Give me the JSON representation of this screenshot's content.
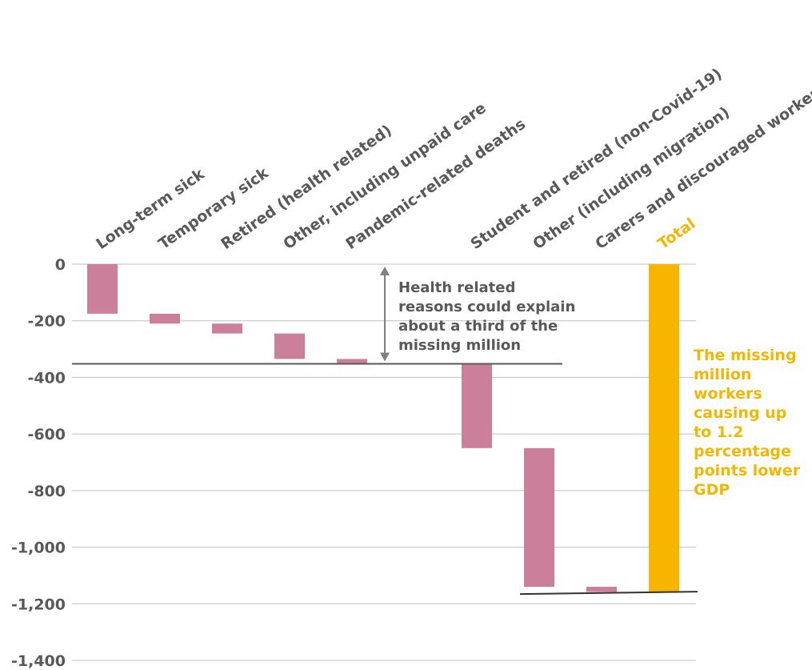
{
  "chart_data": {
    "type": "bar",
    "subtype": "waterfall",
    "categories": [
      "Long-term sick",
      "Temporary sick",
      "Retired (health related)",
      "Other, including unpaid care",
      "Pandemic-related deaths",
      "",
      "Student and retired (non-Covid-19)",
      "Other (including migration)",
      "Carers and discouraged workers",
      "Total"
    ],
    "values": [
      -175,
      -35,
      -35,
      -90,
      -15,
      0,
      -300,
      -490,
      -18,
      -1160
    ],
    "ylim": [
      -1400,
      0
    ],
    "yticks": [
      0,
      -200,
      -400,
      -600,
      -800,
      -1000,
      -1200,
      -1400
    ],
    "ytick_labels": [
      "0",
      "-200",
      "-400",
      "-600",
      "-800",
      "-1,000",
      "-1,200",
      "-1,400"
    ],
    "grid": true,
    "reference_lines": [
      -352,
      -1160
    ],
    "annotations": [
      {
        "text": "Health related reasons could explain about a third of the missing million",
        "lines": [
          "Health related",
          "reasons could explain",
          "about a third of the",
          "missing million"
        ]
      },
      {
        "text": "The missing million workers causing up to 1.2 percentage points lower GDP",
        "lines": [
          "The missing",
          "million",
          "workers",
          "causing up",
          "to 1.2",
          "percentage",
          "points lower",
          "GDP"
        ]
      }
    ],
    "colors": {
      "bar": "#cc7f9b",
      "total": "#f7b500",
      "text": "#595959",
      "grid": "#bfbfbf",
      "highlight_text": "#f2b705"
    }
  }
}
